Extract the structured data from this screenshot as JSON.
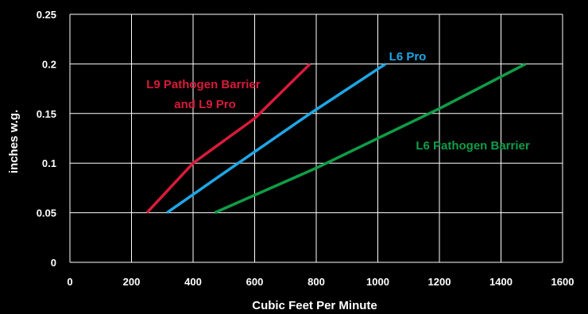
{
  "chart_data": {
    "type": "line",
    "title": "",
    "xlabel": "Cubic Feet Per Minute",
    "ylabel": "inches w.g.",
    "xlim": [
      0,
      1600
    ],
    "ylim": [
      0,
      0.25
    ],
    "x_ticks": [
      0,
      200,
      400,
      600,
      800,
      1000,
      1200,
      1400,
      1600
    ],
    "y_ticks": [
      0,
      0.05,
      0.1,
      0.15,
      0.2,
      0.25
    ],
    "x_tick_labels": [
      "0",
      "200",
      "400",
      "600",
      "800",
      "1000",
      "1200",
      "1400",
      "1600"
    ],
    "y_tick_labels": [
      "0",
      "0.05",
      "0.1",
      "0.15",
      "0.2",
      "0.25"
    ],
    "grid": true,
    "legend": "none (series labelled inline)",
    "background_color": "#000000",
    "grid_color": "#ffffff",
    "series": [
      {
        "name": "L9 Pathogen Barrier and L9 Pro",
        "label_lines": [
          "L9 Pathogen Barrier",
          "and L9 Pro"
        ],
        "color": "#d81b3a",
        "x": [
          250,
          400,
          600,
          780
        ],
        "y": [
          0.05,
          0.1,
          0.145,
          0.2
        ]
      },
      {
        "name": "L6 Pro",
        "label_lines": [
          "L6 Pro"
        ],
        "color": "#1ea7e6",
        "x": [
          315,
          500,
          780,
          1025
        ],
        "y": [
          0.05,
          0.09,
          0.15,
          0.2
        ]
      },
      {
        "name": "L6 Pathogen Barrier",
        "label_lines": [
          "L6 Pathogen Barrier"
        ],
        "color": "#0f9d48",
        "x": [
          470,
          800,
          1200,
          1480
        ],
        "y": [
          0.05,
          0.095,
          0.155,
          0.2
        ]
      }
    ]
  }
}
